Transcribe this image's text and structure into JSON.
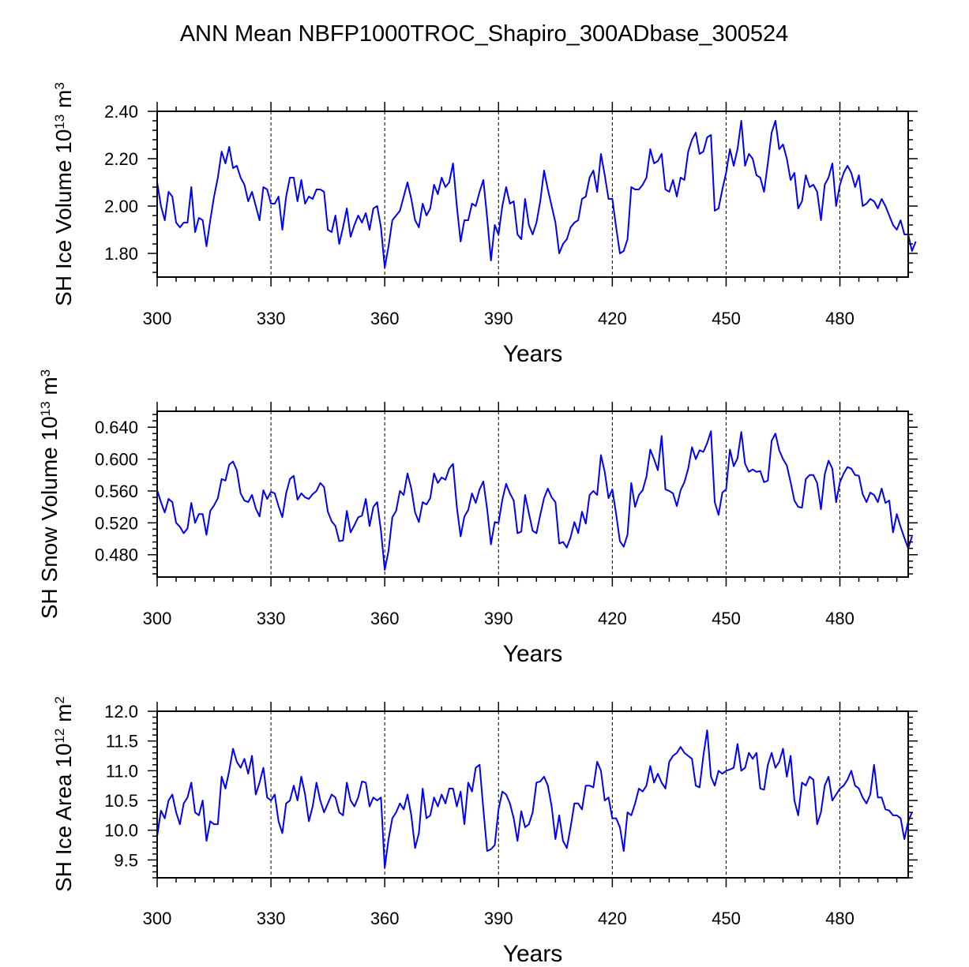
{
  "figure": {
    "title": "ANN Mean NBFP1000TROC_Shapiro_300ADbase_300524"
  },
  "chart_data": [
    {
      "type": "line",
      "title": "",
      "xlabel": "Years",
      "ylabel": {
        "text": "SH Ice Volume 10",
        "exp": "13",
        "unit": " m",
        "unit_exp": "3"
      },
      "xlim": [
        300,
        498
      ],
      "ylim": [
        1.7,
        2.4
      ],
      "xticks": [
        300,
        330,
        360,
        390,
        420,
        450,
        480
      ],
      "xtick_labels": [
        "300",
        "330",
        "360",
        "390",
        "420",
        "450",
        "480"
      ],
      "yticks": [
        1.8,
        2.0,
        2.2,
        2.4
      ],
      "ytick_labels": [
        "1.80",
        "2.00",
        "2.20",
        "2.40"
      ],
      "ytick_minor_step": 0.04,
      "x_minor_step": 5,
      "vlines": [
        330,
        360,
        390,
        420,
        450,
        480
      ],
      "line_color": "#0000ff",
      "series": [
        {
          "x_start": 300,
          "x_step": 1,
          "values": [
            2.1,
            2.0,
            1.94,
            2.06,
            2.04,
            1.93,
            1.91,
            1.93,
            1.93,
            2.08,
            1.89,
            1.95,
            1.94,
            1.83,
            1.94,
            2.04,
            2.12,
            2.23,
            2.18,
            2.25,
            2.16,
            2.17,
            2.12,
            2.09,
            2.02,
            2.06,
            2.0,
            1.94,
            2.08,
            2.07,
            2.01,
            2.01,
            2.04,
            1.9,
            2.04,
            2.12,
            2.12,
            2.02,
            2.11,
            2.01,
            2.04,
            2.03,
            2.07,
            2.07,
            2.06,
            1.9,
            1.89,
            1.96,
            1.84,
            1.91,
            1.99,
            1.87,
            1.92,
            1.96,
            1.93,
            1.97,
            1.9,
            1.99,
            2.0,
            1.91,
            1.74,
            1.83,
            1.94,
            1.96,
            1.98,
            2.04,
            2.1,
            2.03,
            1.94,
            1.91,
            2.01,
            1.96,
            1.99,
            2.09,
            2.05,
            2.12,
            2.08,
            2.1,
            2.18,
            2.0,
            1.85,
            1.94,
            1.94,
            2.01,
            2.0,
            2.06,
            2.11,
            1.95,
            1.77,
            1.92,
            1.88,
            2.0,
            2.08,
            2.01,
            2.02,
            1.88,
            1.86,
            2.03,
            1.92,
            1.88,
            1.93,
            2.02,
            2.15,
            2.07,
            2.0,
            1.93,
            1.8,
            1.84,
            1.86,
            1.91,
            1.93,
            1.94,
            2.03,
            2.04,
            2.12,
            2.15,
            2.06,
            2.22,
            2.13,
            2.03,
            2.03,
            1.91,
            1.8,
            1.81,
            1.86,
            2.08,
            2.07,
            2.07,
            2.09,
            2.12,
            2.24,
            2.18,
            2.19,
            2.22,
            2.07,
            2.06,
            2.11,
            2.04,
            2.12,
            2.11,
            2.23,
            2.28,
            2.31,
            2.22,
            2.23,
            2.29,
            2.3,
            1.98,
            1.99,
            2.07,
            2.14,
            2.24,
            2.17,
            2.24,
            2.36,
            2.17,
            2.22,
            2.2,
            2.13,
            2.12,
            2.06,
            2.18,
            2.31,
            2.36,
            2.24,
            2.26,
            2.2,
            2.11,
            2.14,
            1.99,
            2.02,
            2.13,
            2.08,
            2.09,
            2.06,
            1.94,
            2.09,
            2.12,
            2.18,
            2.0,
            2.09,
            2.14,
            2.17,
            2.14,
            2.08,
            2.13,
            2.0,
            2.01,
            2.03,
            2.02,
            1.99,
            2.03,
            2.0,
            1.96,
            1.92,
            1.9,
            1.94,
            1.88,
            1.88,
            1.81,
            1.85
          ]
        }
      ]
    },
    {
      "type": "line",
      "title": "",
      "xlabel": "Years",
      "ylabel": {
        "text": "SH Snow Volume 10",
        "exp": "13",
        "unit": " m",
        "unit_exp": "3"
      },
      "xlim": [
        300,
        498
      ],
      "ylim": [
        0.452,
        0.66
      ],
      "xticks": [
        300,
        330,
        360,
        390,
        420,
        450,
        480
      ],
      "xtick_labels": [
        "300",
        "330",
        "360",
        "390",
        "420",
        "450",
        "480"
      ],
      "yticks": [
        0.48,
        0.52,
        0.56,
        0.6,
        0.64
      ],
      "ytick_labels": [
        "0.480",
        "0.520",
        "0.560",
        "0.600",
        "0.640"
      ],
      "ytick_minor_step": 0.008,
      "x_minor_step": 5,
      "vlines": [
        330,
        360,
        390,
        420,
        450,
        480
      ],
      "line_color": "#0000ff",
      "series": [
        {
          "x_start": 300,
          "x_step": 1,
          "values": [
            0.561,
            0.546,
            0.533,
            0.55,
            0.546,
            0.52,
            0.515,
            0.507,
            0.513,
            0.545,
            0.52,
            0.531,
            0.531,
            0.505,
            0.535,
            0.542,
            0.551,
            0.575,
            0.573,
            0.593,
            0.597,
            0.586,
            0.557,
            0.548,
            0.546,
            0.555,
            0.538,
            0.528,
            0.561,
            0.55,
            0.559,
            0.557,
            0.541,
            0.527,
            0.557,
            0.575,
            0.579,
            0.549,
            0.557,
            0.552,
            0.55,
            0.556,
            0.56,
            0.57,
            0.565,
            0.534,
            0.522,
            0.516,
            0.497,
            0.498,
            0.535,
            0.508,
            0.517,
            0.527,
            0.529,
            0.55,
            0.516,
            0.54,
            0.546,
            0.51,
            0.461,
            0.485,
            0.527,
            0.535,
            0.56,
            0.555,
            0.582,
            0.563,
            0.533,
            0.521,
            0.546,
            0.543,
            0.551,
            0.582,
            0.57,
            0.577,
            0.574,
            0.588,
            0.594,
            0.54,
            0.503,
            0.528,
            0.536,
            0.557,
            0.545,
            0.562,
            0.572,
            0.537,
            0.493,
            0.521,
            0.52,
            0.549,
            0.569,
            0.557,
            0.548,
            0.507,
            0.509,
            0.555,
            0.532,
            0.51,
            0.507,
            0.53,
            0.551,
            0.563,
            0.552,
            0.546,
            0.494,
            0.496,
            0.489,
            0.502,
            0.521,
            0.507,
            0.534,
            0.519,
            0.555,
            0.56,
            0.555,
            0.605,
            0.584,
            0.551,
            0.562,
            0.531,
            0.497,
            0.49,
            0.505,
            0.57,
            0.54,
            0.555,
            0.561,
            0.578,
            0.612,
            0.6,
            0.586,
            0.629,
            0.562,
            0.56,
            0.557,
            0.541,
            0.561,
            0.571,
            0.588,
            0.615,
            0.6,
            0.611,
            0.609,
            0.62,
            0.635,
            0.546,
            0.53,
            0.558,
            0.562,
            0.612,
            0.591,
            0.601,
            0.634,
            0.594,
            0.584,
            0.587,
            0.584,
            0.585,
            0.571,
            0.573,
            0.623,
            0.632,
            0.611,
            0.6,
            0.592,
            0.571,
            0.548,
            0.54,
            0.539,
            0.575,
            0.58,
            0.58,
            0.57,
            0.537,
            0.581,
            0.598,
            0.588,
            0.546,
            0.571,
            0.582,
            0.59,
            0.588,
            0.58,
            0.579,
            0.556,
            0.546,
            0.558,
            0.555,
            0.546,
            0.563,
            0.545,
            0.548,
            0.508,
            0.531,
            0.515,
            0.501,
            0.488,
            0.503
          ]
        }
      ]
    },
    {
      "type": "line",
      "title": "",
      "xlabel": "Years",
      "ylabel": {
        "text": "SH Ice Area 10",
        "exp": "12",
        "unit": " m",
        "unit_exp": "2"
      },
      "xlim": [
        300,
        498
      ],
      "ylim": [
        9.2,
        12.0
      ],
      "xticks": [
        300,
        330,
        360,
        390,
        420,
        450,
        480
      ],
      "xtick_labels": [
        "300",
        "330",
        "360",
        "390",
        "420",
        "450",
        "480"
      ],
      "yticks": [
        9.5,
        10.0,
        10.5,
        11.0,
        11.5,
        12.0
      ],
      "ytick_labels": [
        "9.5",
        "10.0",
        "10.5",
        "11.0",
        "11.5",
        "12.0"
      ],
      "ytick_minor_step": 0.1,
      "x_minor_step": 5,
      "vlines": [
        330,
        360,
        390,
        420,
        450,
        480
      ],
      "line_color": "#0000ff",
      "series": [
        {
          "x_start": 300,
          "x_step": 1,
          "values": [
            9.9,
            10.33,
            10.2,
            10.5,
            10.6,
            10.3,
            10.1,
            10.45,
            10.55,
            10.8,
            10.3,
            10.25,
            10.5,
            9.82,
            10.15,
            10.1,
            10.1,
            10.9,
            10.7,
            11.0,
            11.37,
            11.15,
            11.05,
            11.2,
            10.95,
            11.25,
            10.6,
            10.8,
            11.05,
            10.55,
            10.5,
            10.6,
            10.15,
            9.95,
            10.45,
            10.5,
            10.75,
            10.5,
            10.9,
            10.6,
            10.15,
            10.4,
            10.8,
            10.5,
            10.3,
            10.45,
            10.6,
            10.55,
            10.3,
            10.25,
            10.8,
            10.5,
            10.4,
            10.55,
            10.82,
            10.8,
            10.4,
            10.55,
            10.5,
            10.55,
            9.37,
            9.85,
            10.2,
            10.3,
            10.45,
            10.35,
            10.6,
            10.25,
            9.7,
            9.95,
            10.7,
            10.2,
            10.25,
            10.55,
            10.4,
            10.6,
            10.45,
            10.7,
            10.7,
            10.4,
            10.65,
            10.1,
            10.8,
            10.65,
            11.05,
            11.1,
            10.35,
            9.65,
            9.68,
            9.75,
            10.35,
            10.65,
            10.6,
            10.45,
            10.2,
            9.82,
            10.32,
            10.05,
            10.1,
            10.3,
            10.8,
            10.82,
            10.9,
            10.75,
            10.4,
            9.85,
            10.25,
            9.82,
            9.7,
            10.05,
            10.45,
            10.45,
            10.35,
            10.75,
            10.75,
            10.72,
            11.15,
            11.0,
            10.5,
            10.55,
            10.2,
            10.2,
            10.05,
            9.65,
            10.3,
            10.25,
            10.45,
            10.7,
            10.65,
            10.75,
            11.08,
            10.8,
            10.95,
            10.8,
            10.7,
            11.15,
            11.25,
            11.3,
            11.4,
            11.3,
            11.25,
            11.2,
            10.75,
            10.72,
            11.25,
            11.68,
            10.9,
            10.75,
            11.0,
            10.95,
            11.0,
            11.02,
            11.05,
            11.45,
            11.0,
            11.05,
            11.3,
            11.2,
            11.3,
            10.7,
            10.68,
            11.1,
            11.3,
            11.05,
            11.15,
            11.37,
            10.9,
            11.25,
            10.5,
            10.25,
            10.8,
            10.75,
            10.9,
            10.85,
            10.1,
            10.3,
            10.75,
            10.9,
            10.5,
            10.6,
            10.7,
            10.75,
            10.85,
            11.0,
            10.75,
            10.7,
            10.55,
            10.45,
            10.6,
            11.1,
            10.55,
            10.55,
            10.35,
            10.33,
            10.25,
            10.25,
            10.2,
            9.85,
            10.15,
            10.3
          ]
        }
      ]
    }
  ]
}
